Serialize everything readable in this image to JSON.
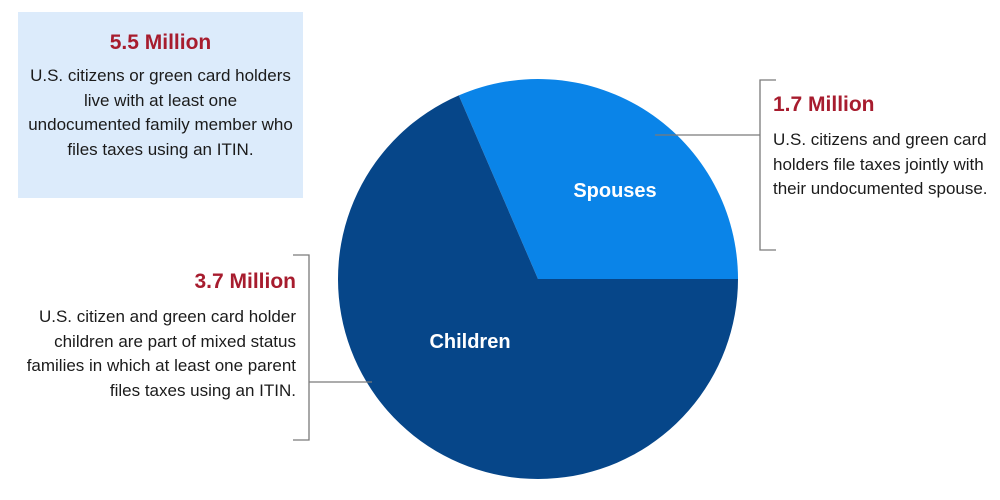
{
  "summary": {
    "value": "5.5 Million",
    "description": "U.S. citizens or green card holders live with at least one undocumented family member who files taxes using an ITIN."
  },
  "chart_data": {
    "type": "pie",
    "categories": [
      "Spouses",
      "Children"
    ],
    "values": [
      1.7,
      3.7
    ],
    "unit": "Million",
    "colors": [
      "#0a84e8",
      "#064689"
    ],
    "slice_labels": [
      "Spouses",
      "Children"
    ],
    "annotations": [
      {
        "value": "1.7 Million",
        "text": "U.S. citizens and green card holders file taxes jointly with their undocumented spouse."
      },
      {
        "value": "3.7 Million",
        "text": "U.S. citizen and green card holder children are part of mixed status families in which at least one parent files taxes using an ITIN."
      }
    ]
  }
}
